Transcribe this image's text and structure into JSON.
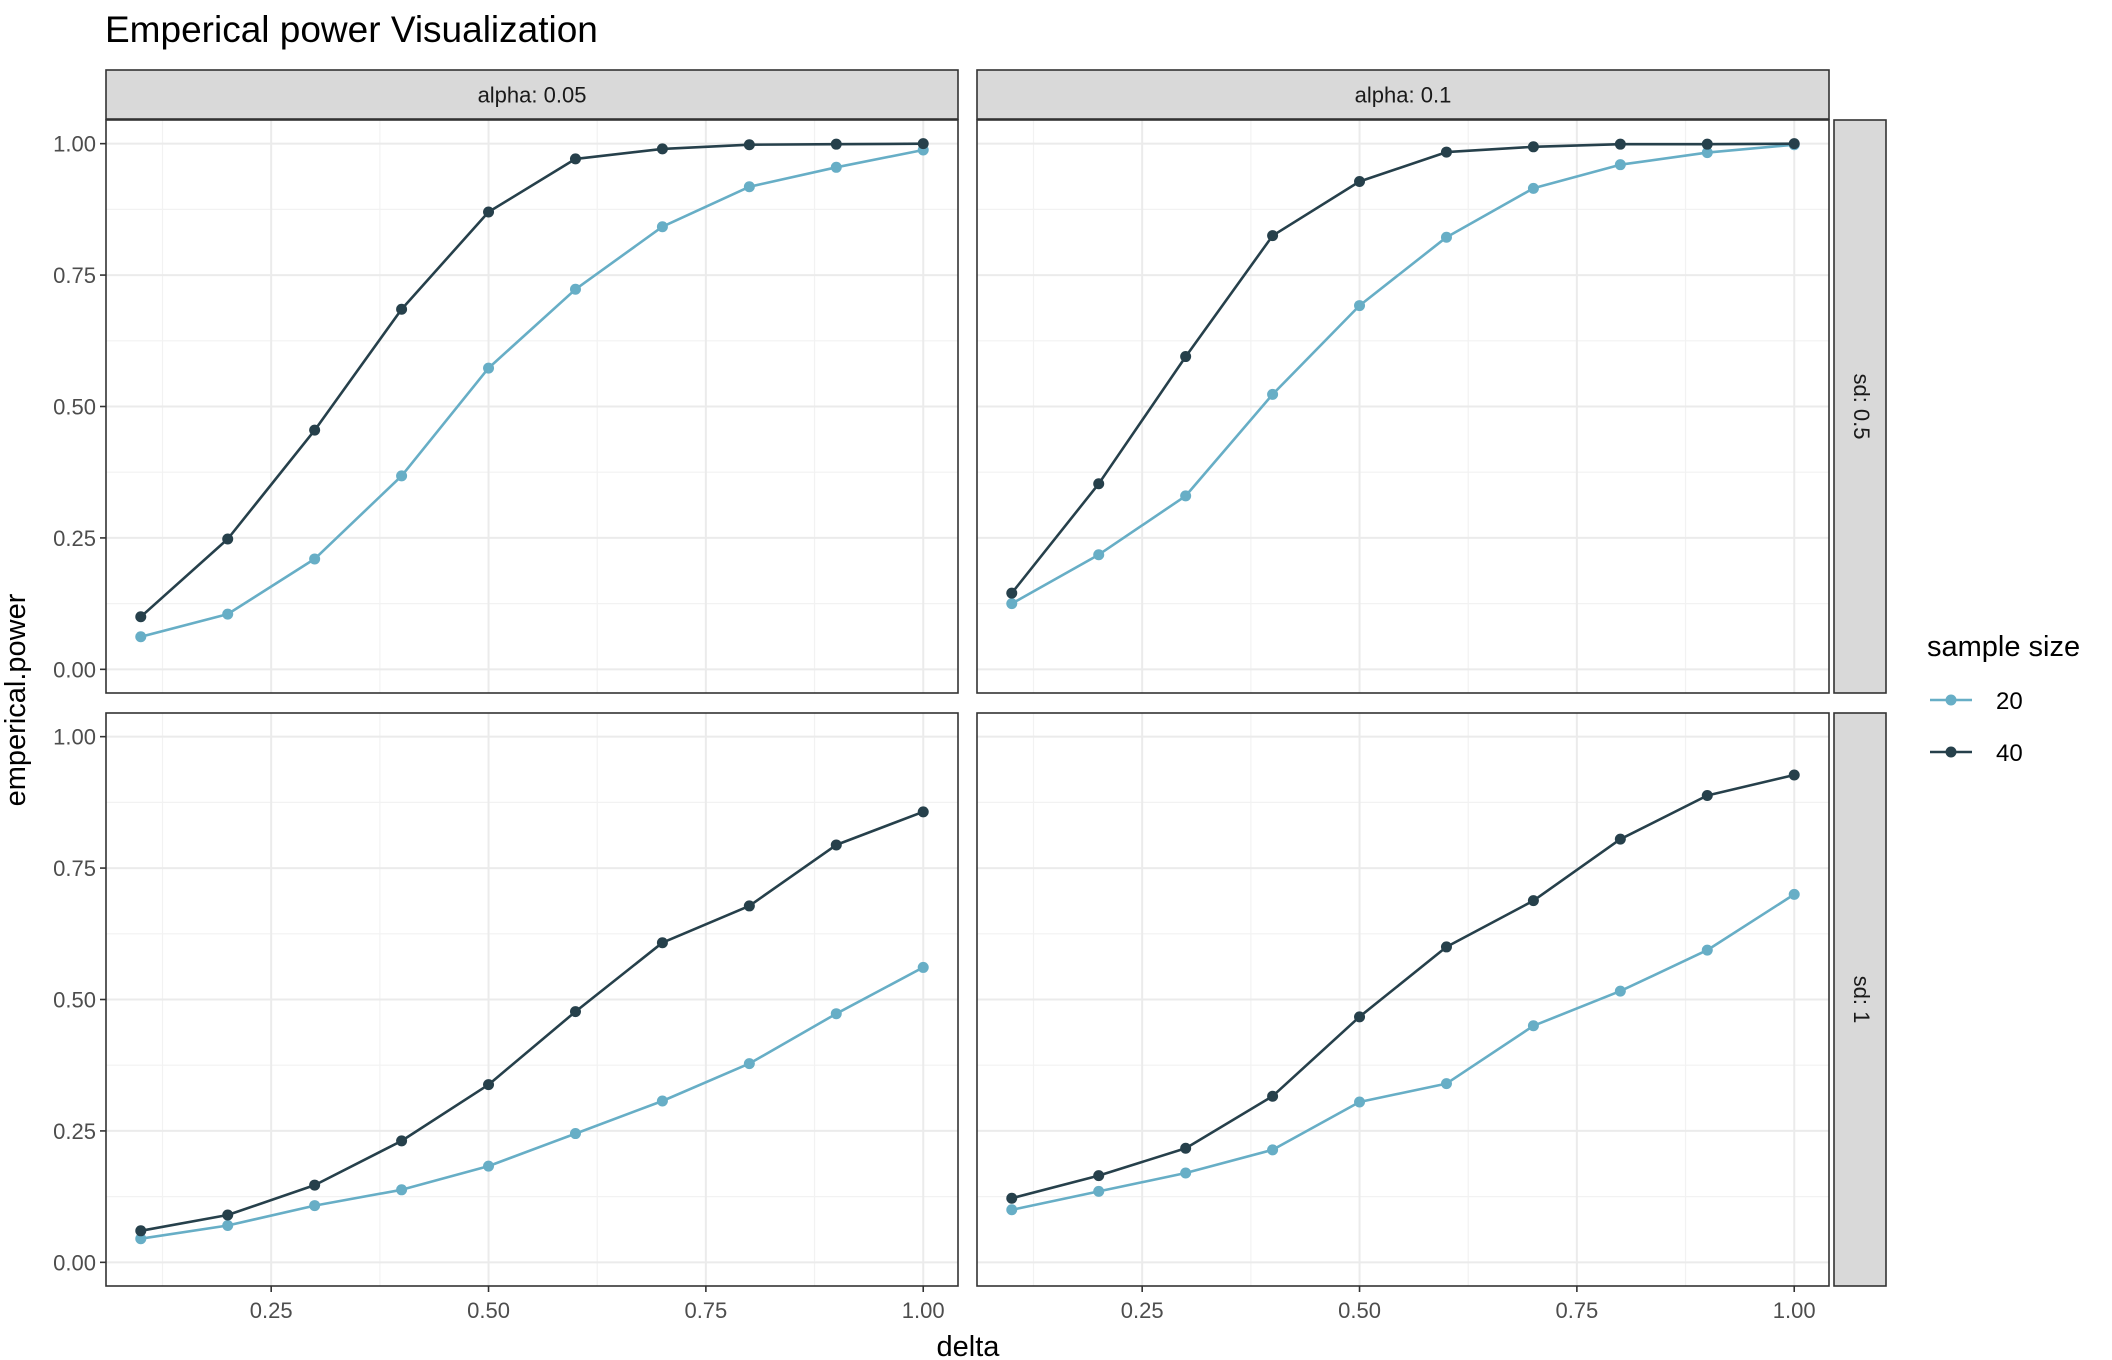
{
  "chart_data": {
    "type": "line",
    "title": "Emperical power Visualization",
    "xlabel": "delta",
    "ylabel": "emperical.power",
    "xlim": [
      0.1,
      1.0
    ],
    "ylim": [
      0,
      1
    ],
    "x_ticks": [
      "0.25",
      "0.50",
      "0.75",
      "1.00"
    ],
    "y_ticks": [
      "0.00",
      "0.25",
      "0.50",
      "0.75",
      "1.00"
    ],
    "grid": true,
    "legend": {
      "title": "sample size",
      "position": "right",
      "entries": [
        {
          "label": "20",
          "color": "#67aec6"
        },
        {
          "label": "40",
          "color": "#26404b"
        }
      ]
    },
    "column_strips": [
      "alpha: 0.05",
      "alpha: 0.1"
    ],
    "row_strips": [
      "sd: 0.5",
      "sd: 1"
    ],
    "x": [
      0.1,
      0.2,
      0.3,
      0.4,
      0.5,
      0.6,
      0.7,
      0.8,
      0.9,
      1.0
    ],
    "panels": [
      {
        "column": "alpha: 0.05",
        "row": "sd: 0.5",
        "series": [
          {
            "name": "20",
            "values": [
              0.062,
              0.105,
              0.21,
              0.368,
              0.573,
              0.723,
              0.842,
              0.918,
              0.955,
              0.988
            ]
          },
          {
            "name": "40",
            "values": [
              0.1,
              0.248,
              0.455,
              0.685,
              0.87,
              0.971,
              0.99,
              0.998,
              0.999,
              1.0
            ]
          }
        ]
      },
      {
        "column": "alpha: 0.1",
        "row": "sd: 0.5",
        "series": [
          {
            "name": "20",
            "values": [
              0.125,
              0.218,
              0.33,
              0.523,
              0.692,
              0.822,
              0.915,
              0.96,
              0.983,
              0.998
            ]
          },
          {
            "name": "40",
            "values": [
              0.145,
              0.353,
              0.595,
              0.825,
              0.928,
              0.984,
              0.994,
              0.999,
              0.999,
              1.0
            ]
          }
        ]
      },
      {
        "column": "alpha: 0.05",
        "row": "sd: 1",
        "series": [
          {
            "name": "20",
            "values": [
              0.045,
              0.07,
              0.108,
              0.138,
              0.183,
              0.245,
              0.307,
              0.378,
              0.473,
              0.561
            ]
          },
          {
            "name": "40",
            "values": [
              0.06,
              0.09,
              0.147,
              0.231,
              0.338,
              0.477,
              0.608,
              0.678,
              0.794,
              0.857
            ]
          }
        ]
      },
      {
        "column": "alpha: 0.1",
        "row": "sd: 1",
        "series": [
          {
            "name": "20",
            "values": [
              0.1,
              0.135,
              0.17,
              0.214,
              0.305,
              0.34,
              0.45,
              0.516,
              0.594,
              0.7
            ]
          },
          {
            "name": "40",
            "values": [
              0.122,
              0.165,
              0.217,
              0.316,
              0.467,
              0.6,
              0.688,
              0.805,
              0.888,
              0.927
            ]
          }
        ]
      }
    ]
  }
}
